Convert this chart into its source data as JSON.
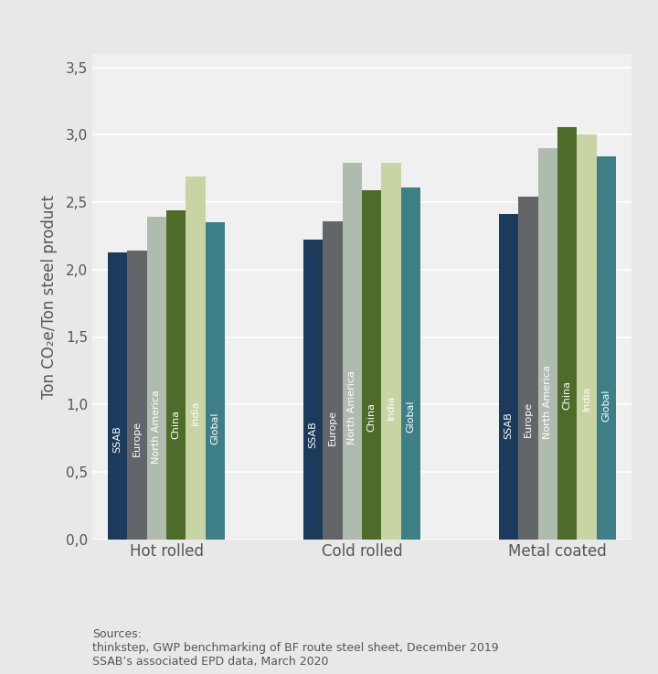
{
  "categories": [
    "Hot rolled",
    "Cold rolled",
    "Metal coated"
  ],
  "series_labels": [
    "SSAB",
    "Europe",
    "North America",
    "China",
    "India",
    "Global"
  ],
  "values": {
    "Hot rolled": [
      2.13,
      2.14,
      2.39,
      2.44,
      2.69,
      2.35
    ],
    "Cold rolled": [
      2.22,
      2.36,
      2.79,
      2.59,
      2.79,
      2.61
    ],
    "Metal coated": [
      2.41,
      2.54,
      2.9,
      3.06,
      3.0,
      2.84
    ]
  },
  "bar_colors": [
    "#1b3a5c",
    "#636669",
    "#b0bbb0",
    "#4f6b2a",
    "#c8d4a4",
    "#3d7e87"
  ],
  "ylabel": "Ton CO₂e/Ton steel product",
  "yticks": [
    0.0,
    0.5,
    1.0,
    1.5,
    2.0,
    2.5,
    3.0,
    3.5
  ],
  "ytick_labels": [
    "0,0",
    "0,5",
    "1,0",
    "1,5",
    "2,0",
    "2,5",
    "3,0",
    "3,5"
  ],
  "ylim": [
    0,
    3.6
  ],
  "bar_width": 0.1,
  "background_color": "#e8e8e8",
  "plot_bg_color": "#f0f0f0",
  "source_text": "Sources:\nthinkstep, GWP benchmarking of BF route steel sheet, December 2019\nSSAB’s associated EPD data, March 2020",
  "label_fontsize": 8,
  "tick_fontsize": 11,
  "ylabel_fontsize": 12,
  "xtick_fontsize": 12,
  "grid_color": "#ffffff",
  "tick_color": "#555555"
}
